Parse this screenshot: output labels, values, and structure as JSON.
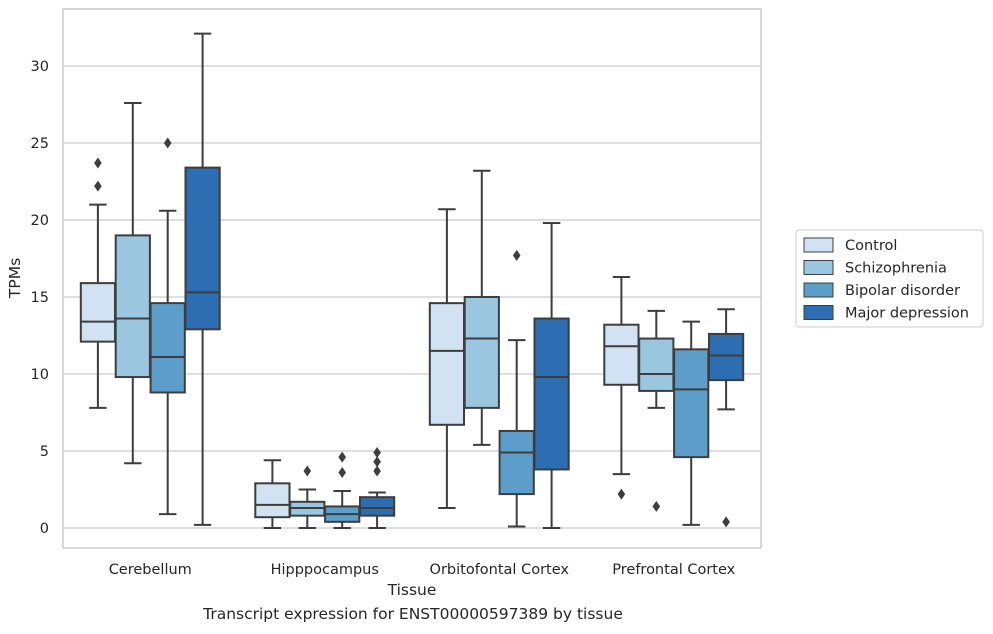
{
  "caption": "Transcript expression for ENST00000597389 by tissue",
  "chart_data": {
    "type": "box",
    "xlabel": "Tissue",
    "ylabel": "TPMs",
    "ylim": [
      -1.3,
      33.7
    ],
    "yticks": [
      0,
      5,
      10,
      15,
      20,
      25,
      30
    ],
    "grid": "horizontal",
    "legend_position": "right",
    "categories": [
      "Cerebellum",
      "Hipppocampus",
      "Orbitofontal Cortex",
      "Prefrontal Cortex"
    ],
    "series": [
      {
        "name": "Control",
        "color": "#d1e2f2",
        "boxes": [
          {
            "low": 7.8,
            "q1": 12.1,
            "median": 13.4,
            "q3": 15.9,
            "high": 21.0,
            "outliers": [
              22.2,
              23.7
            ]
          },
          {
            "low": 0.0,
            "q1": 0.7,
            "median": 1.5,
            "q3": 2.9,
            "high": 4.4,
            "outliers": []
          },
          {
            "low": 1.3,
            "q1": 6.7,
            "median": 11.5,
            "q3": 14.6,
            "high": 20.7,
            "outliers": []
          },
          {
            "low": 3.5,
            "q1": 9.3,
            "median": 11.8,
            "q3": 13.2,
            "high": 16.3,
            "outliers": [
              2.2
            ]
          }
        ]
      },
      {
        "name": "Schizophrenia",
        "color": "#9ac6df",
        "boxes": [
          {
            "low": 4.2,
            "q1": 9.8,
            "median": 13.6,
            "q3": 19.0,
            "high": 27.6,
            "outliers": []
          },
          {
            "low": 0.0,
            "q1": 0.8,
            "median": 1.3,
            "q3": 1.7,
            "high": 2.5,
            "outliers": [
              3.7
            ]
          },
          {
            "low": 5.4,
            "q1": 7.8,
            "median": 12.3,
            "q3": 15.0,
            "high": 23.2,
            "outliers": []
          },
          {
            "low": 7.8,
            "q1": 8.9,
            "median": 10.0,
            "q3": 12.3,
            "high": 14.1,
            "outliers": [
              1.4
            ]
          }
        ]
      },
      {
        "name": "Bipolar disorder",
        "color": "#5c9ec9",
        "boxes": [
          {
            "low": 0.9,
            "q1": 8.8,
            "median": 11.1,
            "q3": 14.6,
            "high": 20.6,
            "outliers": [
              25.0
            ]
          },
          {
            "low": 0.0,
            "q1": 0.4,
            "median": 0.9,
            "q3": 1.4,
            "high": 2.4,
            "outliers": [
              3.6,
              4.6
            ]
          },
          {
            "low": 0.1,
            "q1": 2.2,
            "median": 4.9,
            "q3": 6.3,
            "high": 12.2,
            "outliers": [
              17.7
            ]
          },
          {
            "low": 0.2,
            "q1": 4.6,
            "median": 9.0,
            "q3": 11.6,
            "high": 13.4,
            "outliers": []
          }
        ]
      },
      {
        "name": "Major depression",
        "color": "#2c6eb1",
        "boxes": [
          {
            "low": 0.2,
            "q1": 12.9,
            "median": 15.3,
            "q3": 23.4,
            "high": 32.1,
            "outliers": []
          },
          {
            "low": 0.0,
            "q1": 0.8,
            "median": 1.3,
            "q3": 2.0,
            "high": 2.3,
            "outliers": [
              3.7,
              4.3,
              4.9
            ]
          },
          {
            "low": 0.0,
            "q1": 3.8,
            "median": 9.8,
            "q3": 13.6,
            "high": 19.8,
            "outliers": []
          },
          {
            "low": 7.7,
            "q1": 9.6,
            "median": 11.2,
            "q3": 12.6,
            "high": 14.2,
            "outliers": [
              0.4
            ]
          }
        ]
      }
    ]
  }
}
